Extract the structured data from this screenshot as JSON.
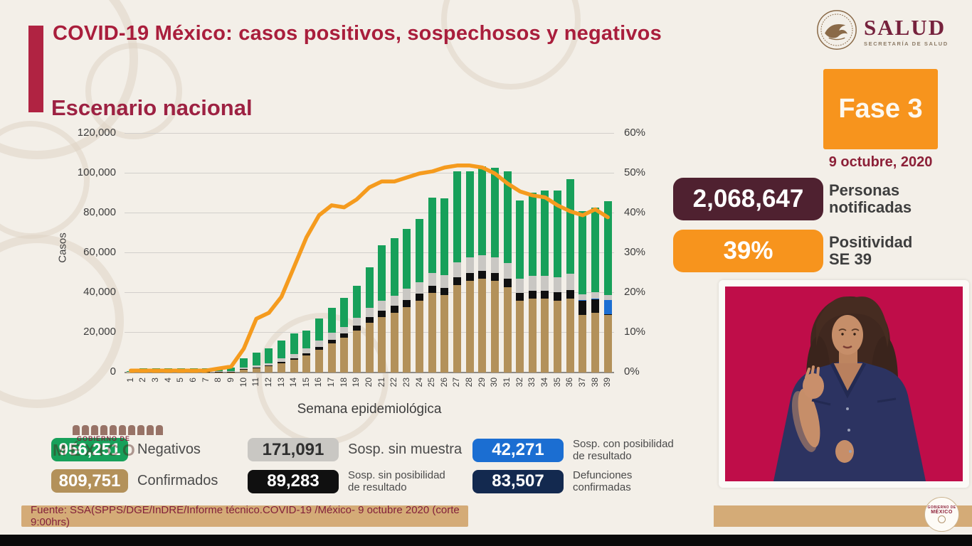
{
  "slide": {
    "title": "COVID-19 México: casos positivos, sospechosos y negativos",
    "section_title": "Escenario nacional"
  },
  "logo": {
    "name": "SALUD",
    "subtitle": "SECRETARÍA DE SALUD"
  },
  "phase": {
    "label": "Fase 3",
    "date": "9 octubre, 2020"
  },
  "stats": [
    {
      "value": "2,068,647",
      "label_line1": "Personas",
      "label_line2": "notificadas",
      "color": "#4f2130"
    },
    {
      "value": "39%",
      "label_line1": "Positividad",
      "label_line2": "SE 39",
      "color": "#f7941d"
    }
  ],
  "chart_data": {
    "type": "stacked-bar+line",
    "title": "Escenario nacional",
    "xlabel": "Semana epidemiológica",
    "ylabel_left": "Casos",
    "axis_left": {
      "min": 0,
      "max": 120000,
      "ticks": [
        "0",
        "20,000",
        "40,000",
        "60,000",
        "80,000",
        "100,000",
        "120,000"
      ]
    },
    "axis_right": {
      "min": 0,
      "max": 60,
      "ticks": [
        "0%",
        "10%",
        "20%",
        "30%",
        "40%",
        "50%",
        "60%"
      ]
    },
    "grid": true,
    "legend_position": "bottom",
    "x": [
      1,
      2,
      3,
      4,
      5,
      6,
      7,
      8,
      9,
      10,
      11,
      12,
      13,
      14,
      15,
      16,
      17,
      18,
      19,
      20,
      21,
      22,
      23,
      24,
      25,
      26,
      27,
      28,
      29,
      30,
      31,
      32,
      33,
      34,
      35,
      36,
      37,
      38,
      39
    ],
    "series": [
      {
        "name": "Confirmados",
        "color": "#b3915a",
        "values": [
          150,
          150,
          150,
          150,
          150,
          150,
          150,
          150,
          150,
          1500,
          2200,
          3200,
          4800,
          6500,
          8500,
          11500,
          14500,
          17500,
          21000,
          25000,
          28000,
          30000,
          33000,
          36000,
          40000,
          39000,
          44000,
          46000,
          47000,
          46000,
          43000,
          36000,
          37000,
          37000,
          36000,
          37000,
          29000,
          30000,
          29000
        ]
      },
      {
        "name": "Sosp. sin posibilidad de resultado",
        "color": "#101010",
        "values": [
          50,
          50,
          50,
          50,
          50,
          50,
          50,
          50,
          50,
          300,
          300,
          400,
          600,
          800,
          1000,
          1500,
          2000,
          2000,
          2500,
          3000,
          3000,
          3500,
          3500,
          3500,
          3500,
          3500,
          4000,
          4000,
          4000,
          4000,
          4000,
          4000,
          4000,
          4000,
          4500,
          4500,
          7000,
          7000,
          300
        ]
      },
      {
        "name": "Sosp. con posibilidad de resultado",
        "color": "#1b6ed2",
        "values": [
          0,
          0,
          0,
          0,
          0,
          0,
          0,
          0,
          0,
          0,
          0,
          0,
          0,
          0,
          0,
          0,
          0,
          0,
          0,
          0,
          0,
          0,
          0,
          0,
          0,
          0,
          0,
          0,
          0,
          0,
          0,
          0,
          0,
          0,
          0,
          0,
          300,
          300,
          7000
        ]
      },
      {
        "name": "Sosp. sin muestra",
        "color": "#c9c7c3",
        "values": [
          300,
          350,
          400,
          400,
          400,
          350,
          350,
          350,
          500,
          800,
          1000,
          1200,
          1600,
          2000,
          2500,
          3000,
          3500,
          3500,
          4000,
          4500,
          5000,
          5000,
          5500,
          6000,
          6500,
          6500,
          7500,
          8000,
          8000,
          8000,
          8000,
          7000,
          7500,
          7500,
          7500,
          8000,
          3000,
          3000,
          2500
        ]
      },
      {
        "name": "Negativos",
        "color": "#17a05a",
        "values": [
          100,
          1450,
          1500,
          1700,
          1600,
          1550,
          1450,
          1450,
          1700,
          4400,
          6500,
          7200,
          9000,
          10200,
          9000,
          11000,
          12500,
          14500,
          16000,
          20500,
          28000,
          29000,
          30000,
          31500,
          38000,
          38500,
          45500,
          43000,
          44500,
          45000,
          46000,
          39500,
          42000,
          43000,
          43500,
          47500,
          41700,
          42700,
          47200
        ]
      }
    ],
    "line": {
      "name": "Positividad (%)",
      "color": "#f59b1e",
      "axis": "right",
      "values": [
        0.5,
        0.5,
        0.5,
        0.5,
        0.5,
        0.5,
        0.5,
        1,
        1.5,
        6,
        13.5,
        15,
        19,
        26.5,
        34,
        39.5,
        42,
        41.5,
        43.5,
        46.5,
        48,
        48,
        49,
        50,
        50.5,
        51.5,
        52,
        52,
        51.5,
        50,
        47.5,
        45.5,
        44.5,
        44,
        42,
        40.5,
        39.5,
        41,
        39
      ]
    }
  },
  "legend": {
    "items": [
      {
        "value": "956,251",
        "label": "Negativos",
        "color": "#17a05a",
        "text": "#ffffff",
        "size": "lg",
        "col": 0,
        "row": 0
      },
      {
        "value": "171,091",
        "label": "Sosp. sin muestra",
        "color": "#c9c7c3",
        "text": "#2f2f2f",
        "size": "lg",
        "col": 1,
        "row": 0
      },
      {
        "value": "42,271",
        "label": "Sosp. con posibilidad de resultado",
        "color": "#1b6ed2",
        "text": "#ffffff",
        "size": "sm",
        "col": 2,
        "row": 0
      },
      {
        "value": "809,751",
        "label": "Confirmados",
        "color": "#b3915a",
        "text": "#ffffff",
        "size": "lg",
        "col": 0,
        "row": 1
      },
      {
        "value": "89,283",
        "label": "Sosp. sin posibilidad de resultado",
        "color": "#101010",
        "text": "#ffffff",
        "size": "sm",
        "col": 1,
        "row": 1
      },
      {
        "value": "83,507",
        "label": "Defunciones confirmadas",
        "color": "#13294f",
        "text": "#ffffff",
        "size": "sm",
        "col": 2,
        "row": 1
      }
    ]
  },
  "watermark": {
    "line1": "GOBIERNO DE",
    "line2": "MÉXICO"
  },
  "emblem": {
    "line1": "GOBIERNO DE",
    "line2": "MÉXICO"
  },
  "footer": {
    "source": "Fuente: SSA(SPPS/DGE/InDRE/Informe técnico.COVID-19 /México- 9 octubre 2020 (corte 9:00hrs)"
  }
}
